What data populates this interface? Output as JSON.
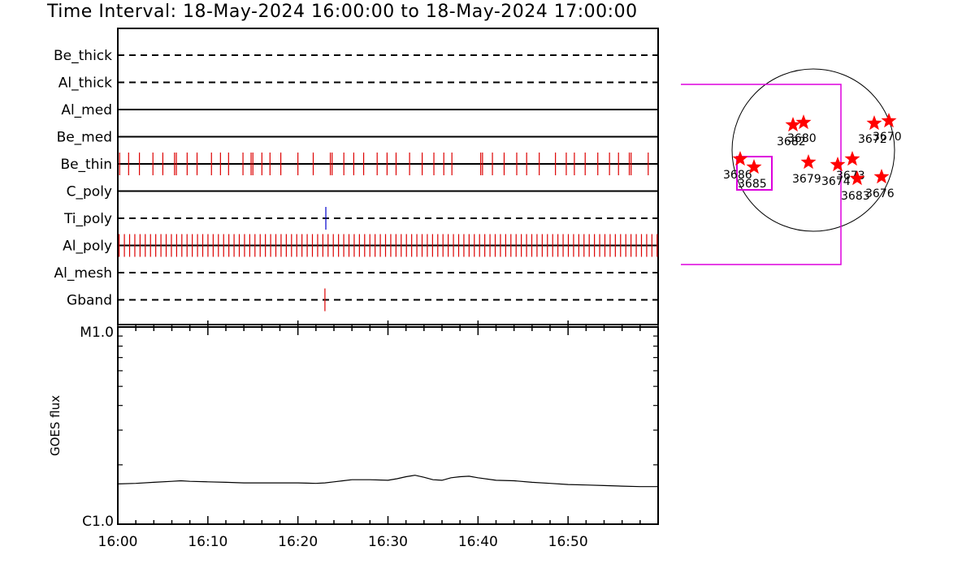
{
  "title": "Time Interval: 18-May-2024 16:00:00 to 18-May-2024 17:00:00",
  "chart_data": [
    {
      "type": "event-timeline",
      "x_unit": "minutes after 16:00",
      "x_range": [
        0,
        60
      ],
      "x_tick_labels": [
        "16:00",
        "16:10",
        "16:20",
        "16:30",
        "16:40",
        "16:50"
      ],
      "x_tick_values": [
        0,
        10,
        20,
        30,
        40,
        50
      ],
      "rows": [
        {
          "label": "Be_thick",
          "style": "dashed",
          "event_color": "",
          "events": []
        },
        {
          "label": "Al_thick",
          "style": "dashed",
          "event_color": "",
          "events": []
        },
        {
          "label": "Al_med",
          "style": "solid",
          "event_color": "",
          "events": []
        },
        {
          "label": "Be_med",
          "style": "solid",
          "event_color": "",
          "events": []
        },
        {
          "label": "Be_thin",
          "style": "solid",
          "event_color": "#dd0000",
          "events": [
            0.2,
            1.2,
            2.4,
            3.9,
            5.0,
            6.3,
            6.5,
            7.7,
            8.8,
            10.4,
            11.4,
            12.3,
            13.9,
            14.8,
            15.0,
            16.0,
            16.9,
            18.1,
            20.0,
            21.7,
            23.6,
            23.8,
            25.1,
            26.2,
            27.3,
            28.8,
            29.9,
            30.9,
            32.4,
            33.8,
            35.1,
            36.2,
            37.1,
            40.3,
            40.5,
            41.6,
            42.9,
            44.3,
            45.4,
            46.8,
            48.6,
            49.8,
            50.7,
            51.9,
            53.3,
            54.6,
            55.6,
            56.8,
            57.0,
            58.9
          ]
        },
        {
          "label": "C_poly",
          "style": "solid",
          "event_color": "",
          "events": []
        },
        {
          "label": "Ti_poly",
          "style": "dashed",
          "event_color": "#0000cc",
          "events": [
            23.1
          ]
        },
        {
          "label": "Al_poly",
          "style": "solid",
          "event_color": "#dd0000",
          "events": "dense"
        },
        {
          "label": "Al_mesh",
          "style": "dashed",
          "event_color": "",
          "events": []
        },
        {
          "label": "Gband",
          "style": "dashed",
          "event_color": "#dd0000",
          "events": [
            23.0
          ]
        }
      ]
    },
    {
      "type": "line",
      "ylabel": "GOES flux",
      "y_scale": "log",
      "ylim_labels": [
        "C1.0",
        "M1.0"
      ],
      "ylim": [
        1e-06,
        1e-05
      ],
      "x_unit": "minutes after 16:00",
      "x": [
        0,
        2,
        4,
        6,
        7,
        8,
        10,
        12,
        14,
        16,
        18,
        20,
        22,
        23,
        24,
        25,
        26,
        28,
        30,
        31,
        32,
        33,
        34,
        35,
        36,
        37,
        38,
        39,
        40,
        42,
        44,
        46,
        48,
        50,
        52,
        54,
        56,
        58,
        60
      ],
      "y": [
        1.6e-06,
        1.61e-06,
        1.63e-06,
        1.65e-06,
        1.66e-06,
        1.65e-06,
        1.64e-06,
        1.63e-06,
        1.62e-06,
        1.62e-06,
        1.62e-06,
        1.62e-06,
        1.61e-06,
        1.62e-06,
        1.64e-06,
        1.66e-06,
        1.68e-06,
        1.68e-06,
        1.67e-06,
        1.7e-06,
        1.74e-06,
        1.77e-06,
        1.73e-06,
        1.68e-06,
        1.67e-06,
        1.72e-06,
        1.74e-06,
        1.75e-06,
        1.72e-06,
        1.67e-06,
        1.66e-06,
        1.63e-06,
        1.61e-06,
        1.59e-06,
        1.58e-06,
        1.57e-06,
        1.56e-06,
        1.55e-06,
        1.55e-06
      ]
    },
    {
      "type": "scatter",
      "description_kind": "solar disk active-region map",
      "regions": [
        {
          "label": "3682",
          "marker": "star"
        },
        {
          "label": "3680",
          "marker": "star"
        },
        {
          "label": "3672",
          "marker": "star"
        },
        {
          "label": "3670",
          "marker": "star"
        },
        {
          "label": "3686",
          "marker": "star"
        },
        {
          "label": "3685",
          "marker": "star"
        },
        {
          "label": "3679",
          "marker": "star"
        },
        {
          "label": "3674",
          "marker": "star"
        },
        {
          "label": "3673",
          "marker": "star"
        },
        {
          "label": "3683",
          "marker": "star"
        },
        {
          "label": "3676",
          "marker": "star"
        }
      ],
      "colors": {
        "marker": "#ff0000",
        "box": "#dd00dd",
        "disk": "#000000"
      }
    }
  ]
}
